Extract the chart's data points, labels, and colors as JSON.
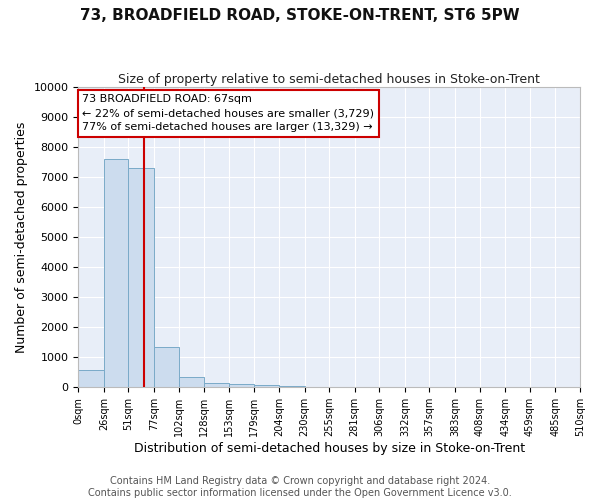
{
  "title": "73, BROADFIELD ROAD, STOKE-ON-TRENT, ST6 5PW",
  "subtitle": "Size of property relative to semi-detached houses in Stoke-on-Trent",
  "xlabel": "Distribution of semi-detached houses by size in Stoke-on-Trent",
  "ylabel": "Number of semi-detached properties",
  "bin_edges": [
    0,
    26,
    51,
    77,
    102,
    128,
    153,
    179,
    204,
    230,
    255,
    281,
    306,
    332,
    357,
    383,
    408,
    434,
    459,
    485,
    510
  ],
  "bar_heights": [
    560,
    7600,
    7280,
    1340,
    345,
    155,
    120,
    80,
    45,
    0,
    0,
    0,
    0,
    0,
    0,
    0,
    0,
    0,
    0,
    0
  ],
  "bar_color": "#ccdcee",
  "bar_edgecolor": "#7aaac8",
  "property_size": 67,
  "vline_color": "#cc0000",
  "annotation_line1": "73 BROADFIELD ROAD: 67sqm",
  "annotation_line2": "← 22% of semi-detached houses are smaller (3,729)",
  "annotation_line3": "77% of semi-detached houses are larger (13,329) →",
  "annotation_box_color": "#cc0000",
  "ylim": [
    0,
    10000
  ],
  "yticks": [
    0,
    1000,
    2000,
    3000,
    4000,
    5000,
    6000,
    7000,
    8000,
    9000,
    10000
  ],
  "background_color": "#e8eef8",
  "grid_color": "#ffffff",
  "footer_text": "Contains HM Land Registry data © Crown copyright and database right 2024.\nContains public sector information licensed under the Open Government Licence v3.0.",
  "title_fontsize": 11,
  "subtitle_fontsize": 9,
  "xlabel_fontsize": 9,
  "ylabel_fontsize": 9,
  "tick_fontsize": 8,
  "footer_fontsize": 7
}
